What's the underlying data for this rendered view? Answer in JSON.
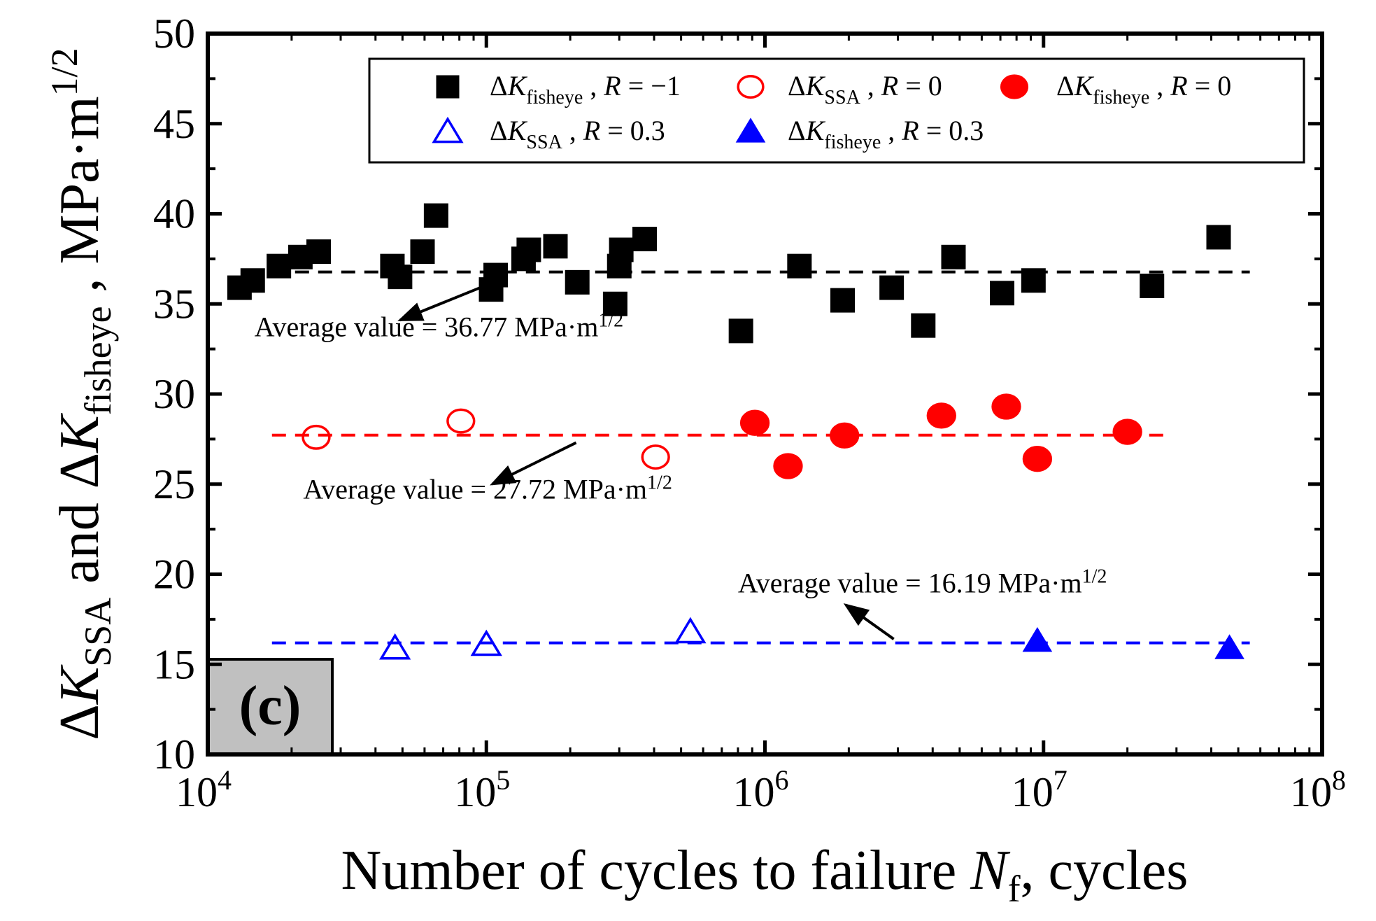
{
  "chart_data": {
    "type": "scatter",
    "title": "",
    "xscale": "log",
    "xlim": [
      10000,
      100000000
    ],
    "ylim": [
      10,
      50
    ],
    "xticks": [
      {
        "value": 10000,
        "base": "10",
        "exp": "4"
      },
      {
        "value": 100000,
        "base": "10",
        "exp": "5"
      },
      {
        "value": 1000000,
        "base": "10",
        "exp": "6"
      },
      {
        "value": 10000000,
        "base": "10",
        "exp": "7"
      },
      {
        "value": 100000000,
        "base": "10",
        "exp": "8"
      }
    ],
    "yticks": [
      10,
      15,
      20,
      25,
      30,
      35,
      40,
      45,
      50
    ],
    "xlabel": {
      "main": "Number of cycles to failure ",
      "var": "N",
      "sub": "f",
      "tail": ", cycles"
    },
    "ylabel": {
      "delta": "Δ",
      "k": "K",
      "sub1": "SSA",
      "and": " and ",
      "sub2": "fisheye",
      "comma": " , ",
      "unit": "MPa·m",
      "sup": "1/2"
    },
    "panel_label": "(c)",
    "series": [
      {
        "name": "ΔK_fisheye, R=−1",
        "legend": {
          "delta": "Δ",
          "k": "K",
          "sub": "fisheye",
          "r": "R",
          "rval": " = −1"
        },
        "marker": "square",
        "filled": true,
        "color": "#000000",
        "points": [
          [
            13000,
            35.9
          ],
          [
            14500,
            36.3
          ],
          [
            18000,
            37.1
          ],
          [
            21500,
            37.6
          ],
          [
            25000,
            37.9
          ],
          [
            46000,
            37.1
          ],
          [
            49000,
            36.5
          ],
          [
            59000,
            37.9
          ],
          [
            66000,
            39.9
          ],
          [
            104000,
            35.8
          ],
          [
            108000,
            36.6
          ],
          [
            136000,
            37.5
          ],
          [
            142000,
            38.0
          ],
          [
            177000,
            38.2
          ],
          [
            212000,
            36.2
          ],
          [
            290000,
            35.0
          ],
          [
            300000,
            37.1
          ],
          [
            305000,
            38.0
          ],
          [
            370000,
            38.6
          ],
          [
            820000,
            33.5
          ],
          [
            1330000,
            37.1
          ],
          [
            1900000,
            35.2
          ],
          [
            2850000,
            35.9
          ],
          [
            3700000,
            33.8
          ],
          [
            4750000,
            37.6
          ],
          [
            7100000,
            35.6
          ],
          [
            9200000,
            36.3
          ],
          [
            24500000,
            36.0
          ],
          [
            42500000,
            38.7
          ]
        ]
      },
      {
        "name": "ΔK_SSA, R=0",
        "legend": {
          "delta": "Δ",
          "k": "K",
          "sub": "SSA",
          "r": "R",
          "rval": " = 0"
        },
        "marker": "circle",
        "filled": false,
        "color": "#ff0000",
        "points": [
          [
            24500,
            27.6
          ],
          [
            81000,
            28.5
          ],
          [
            405000,
            26.5
          ]
        ]
      },
      {
        "name": "ΔK_fisheye, R=0",
        "legend": {
          "delta": "Δ",
          "k": "K",
          "sub": "fisheye",
          "r": "R",
          "rval": " = 0"
        },
        "marker": "circle",
        "filled": true,
        "color": "#ff0000",
        "points": [
          [
            920000,
            28.4
          ],
          [
            1210000,
            26.0
          ],
          [
            1930000,
            27.7
          ],
          [
            4300000,
            28.8
          ],
          [
            7350000,
            29.3
          ],
          [
            9500000,
            26.4
          ],
          [
            20000000,
            27.9
          ]
        ]
      },
      {
        "name": "ΔK_SSA, R=0.3",
        "legend": {
          "delta": "Δ",
          "k": "K",
          "sub": "SSA",
          "r": "R",
          "rval": " = 0.3"
        },
        "marker": "triangle",
        "filled": false,
        "color": "#0000ff",
        "points": [
          [
            47000,
            15.9
          ],
          [
            100000,
            16.1
          ],
          [
            540000,
            16.8
          ]
        ]
      },
      {
        "name": "ΔK_fisheye, R=0.3",
        "legend": {
          "delta": "Δ",
          "k": "K",
          "sub": "fisheye",
          "r": "R",
          "rval": " = 0.3"
        },
        "marker": "triangle",
        "filled": true,
        "color": "#0000ff",
        "points": [
          [
            9500000,
            16.3
          ],
          [
            46500000,
            15.9
          ]
        ]
      }
    ],
    "reference_lines": [
      {
        "y": 36.77,
        "x_range": [
          17000,
          55000000
        ],
        "color": "#000000",
        "style": "dashed"
      },
      {
        "y": 27.72,
        "x_range": [
          17000,
          28000000
        ],
        "color": "#ff0000",
        "style": "dashed"
      },
      {
        "y": 16.19,
        "x_range": [
          17000,
          55000000
        ],
        "color": "#0000ff",
        "style": "dashed"
      }
    ],
    "annotations": [
      {
        "text": "Average value = 36.77 MPa·m",
        "sup": "1/2",
        "text_at": [
          14700,
          33.2
        ],
        "arrow_from": [
          95000,
          35.9
        ],
        "arrow_to": [
          49000,
          34.1
        ]
      },
      {
        "text": "Average value = 27.72 MPa·m",
        "sup": "1/2",
        "text_at": [
          22000,
          24.2
        ],
        "arrow_from": [
          210000,
          27.3
        ],
        "arrow_to": [
          105000,
          25.0
        ]
      },
      {
        "text": "Average value = 16.19 MPa·m",
        "sup": "1/2",
        "text_at": [
          800000,
          19.0
        ],
        "arrow_from": [
          2900000,
          16.4
        ],
        "arrow_to": [
          1950000,
          18.3
        ]
      }
    ]
  }
}
